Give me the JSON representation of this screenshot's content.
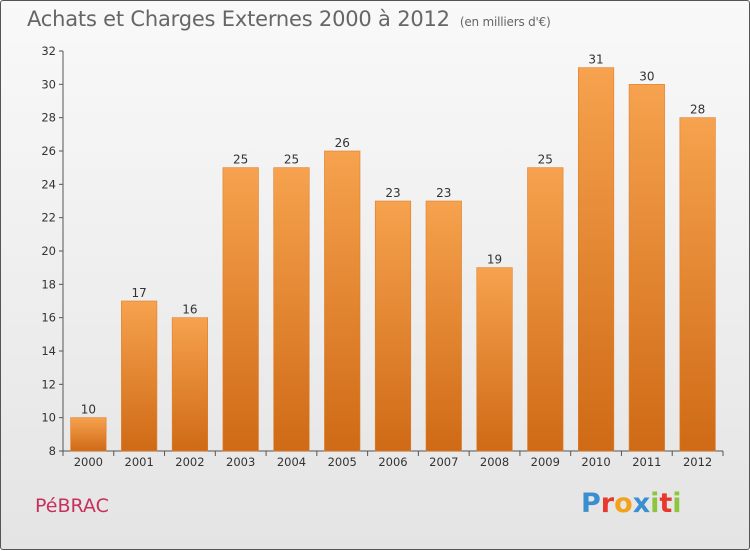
{
  "title": "Achats et Charges Externes 2000 à 2012",
  "subtitle": "(en milliers d'€)",
  "commune": "PéBRAC",
  "brand": {
    "letters": [
      {
        "ch": "P",
        "color": "#3a8fd0"
      },
      {
        "ch": "r",
        "color": "#e8382e"
      },
      {
        "ch": "o",
        "color": "#f4a21b"
      },
      {
        "ch": "x",
        "color": "#3a8fd0"
      },
      {
        "ch": "i",
        "color": "#8cc63f"
      },
      {
        "ch": "t",
        "color": "#e8382e"
      },
      {
        "ch": "i",
        "color": "#8cc63f"
      }
    ]
  },
  "colors": {
    "bar_top": "#f6a24e",
    "bar_bottom": "#cf6a16",
    "axis": "#555555",
    "grid": "#cfcfcf",
    "text": "#333333"
  },
  "chart_data": {
    "type": "bar",
    "title": "Achats et Charges Externes 2000 à 2012",
    "subtitle": "(en milliers d'€)",
    "categories": [
      "2000",
      "2001",
      "2002",
      "2003",
      "2004",
      "2005",
      "2006",
      "2007",
      "2008",
      "2009",
      "2010",
      "2011",
      "2012"
    ],
    "values": [
      10,
      17,
      16,
      25,
      25,
      26,
      23,
      23,
      19,
      25,
      31,
      30,
      28
    ],
    "ylim": [
      8,
      32
    ],
    "yticks": [
      8,
      10,
      12,
      14,
      16,
      18,
      20,
      22,
      24,
      26,
      28,
      30,
      32
    ],
    "xlabel": "",
    "ylabel": "",
    "grid": false,
    "data_labels": true
  }
}
